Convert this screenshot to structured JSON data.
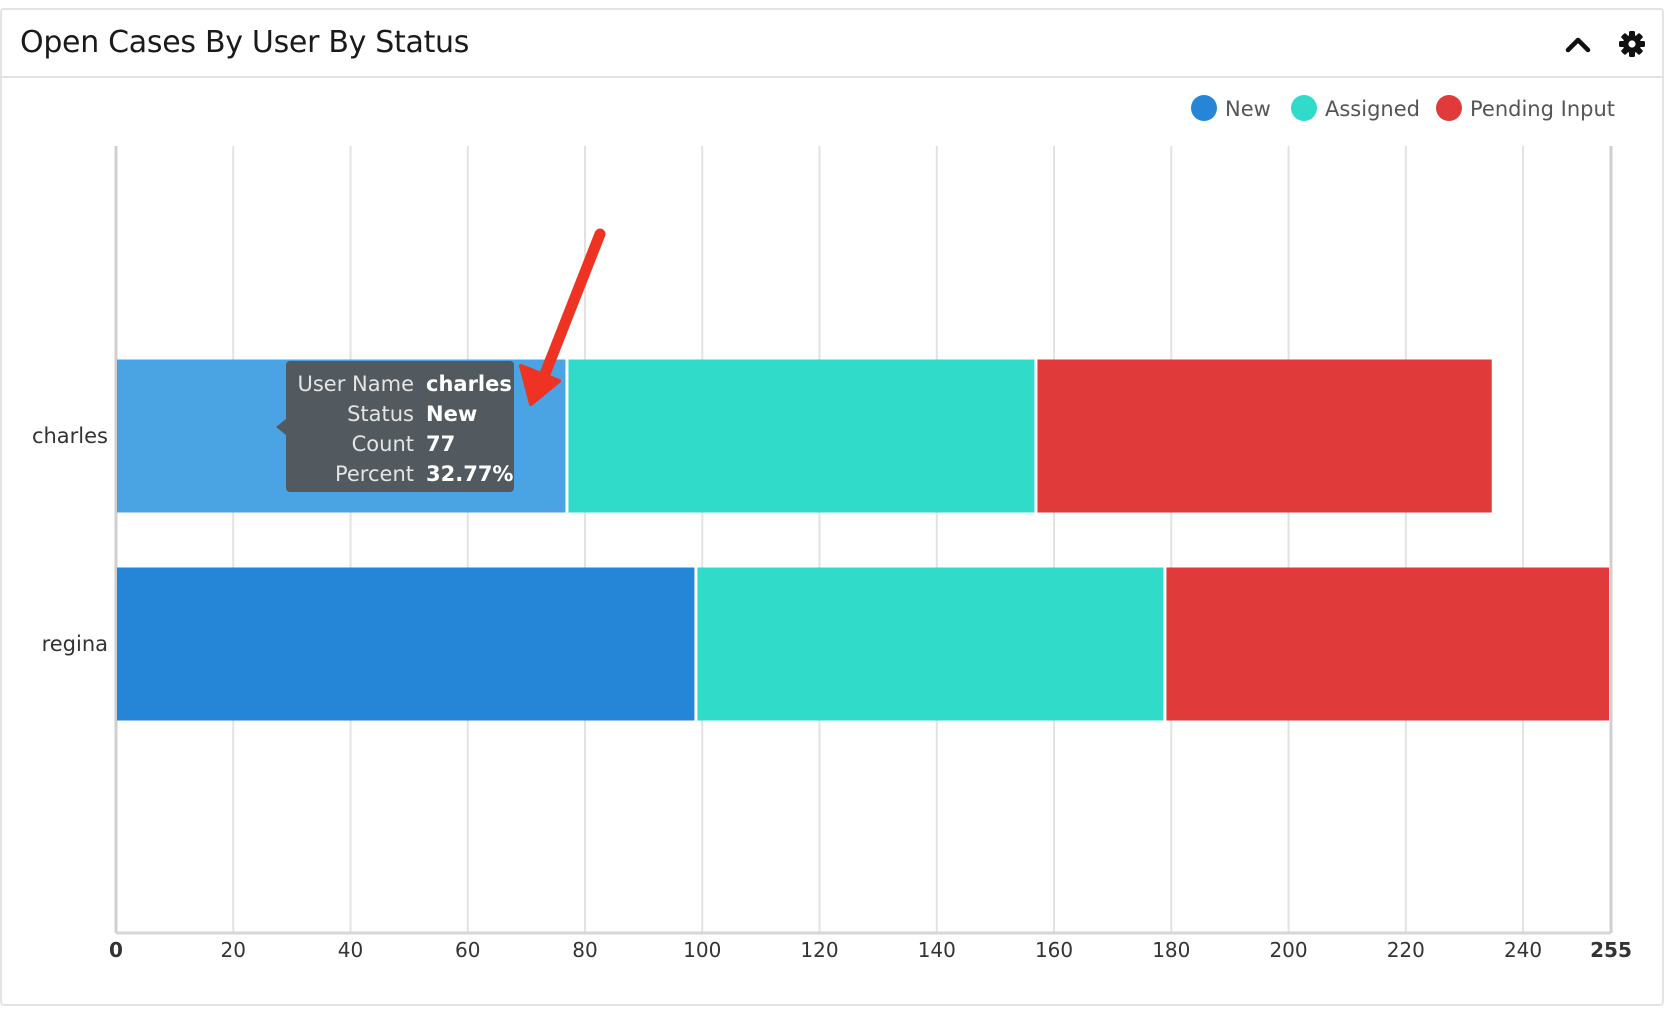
{
  "dashlet": {
    "title": "Open Cases By User By Status",
    "collapse_icon": "chevron-up-icon",
    "settings_icon": "gear-icon"
  },
  "chart_data": {
    "type": "bar",
    "orientation": "horizontal",
    "stacked": true,
    "title": "Open Cases By User By Status",
    "categories": [
      "charles",
      "regina"
    ],
    "series": [
      {
        "name": "New",
        "color": "#2585d6",
        "values": [
          77,
          99
        ]
      },
      {
        "name": "Assigned",
        "color": "#31dbca",
        "values": [
          80,
          80
        ]
      },
      {
        "name": "Pending Input",
        "color": "#e03a3a",
        "values": [
          78,
          76
        ]
      }
    ],
    "xlim": [
      0,
      255
    ],
    "x_ticks": [
      "0",
      "20",
      "40",
      "60",
      "80",
      "100",
      "120",
      "140",
      "160",
      "180",
      "200",
      "220",
      "240",
      "255"
    ],
    "x_tick_values": [
      0,
      20,
      40,
      60,
      80,
      100,
      120,
      140,
      160,
      180,
      200,
      220,
      240,
      255
    ],
    "grid": true,
    "legend_position": "top-right",
    "highlighted": {
      "category_index": 0,
      "series_index": 0,
      "color": "#4aa3e3"
    }
  },
  "tooltip": {
    "rows": [
      {
        "label": "User Name",
        "value": "charles"
      },
      {
        "label": "Status",
        "value": "New"
      },
      {
        "label": "Count",
        "value": "77"
      },
      {
        "label": "Percent",
        "value": "32.77%"
      }
    ]
  },
  "annotation": {
    "type": "arrow",
    "color": "#ee3322"
  }
}
